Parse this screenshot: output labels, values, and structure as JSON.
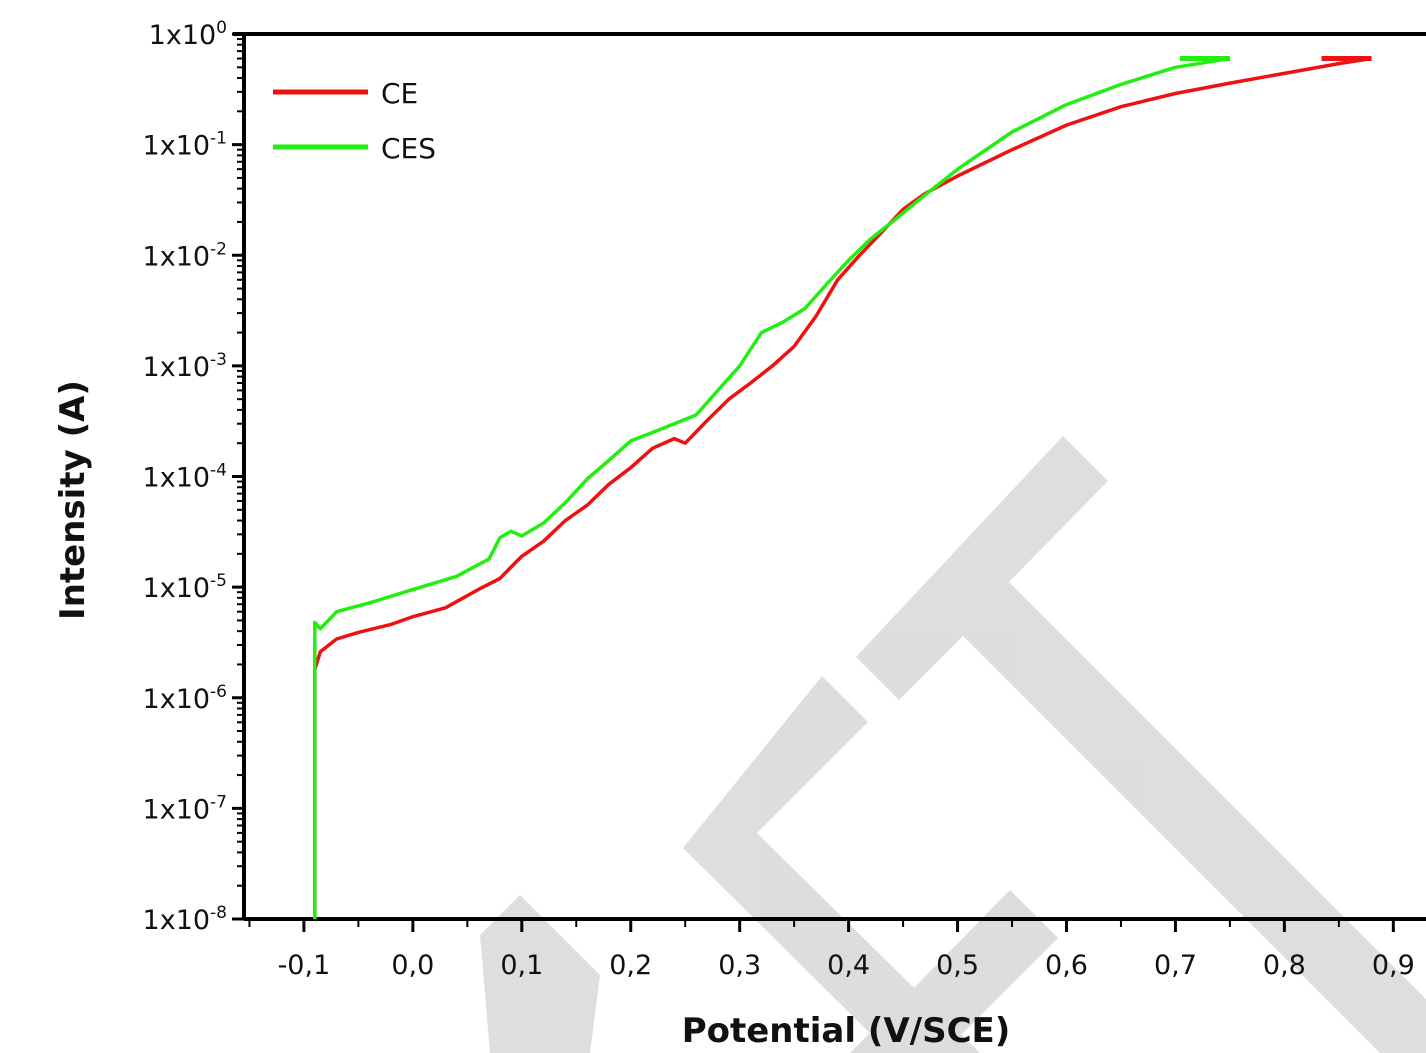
{
  "chart_data": {
    "type": "line",
    "xlabel": "Potential (V/SCE)",
    "ylabel": "Intensity (A)",
    "xlim": [
      -0.155,
      0.93
    ],
    "ylim_log10": [
      -8,
      0
    ],
    "y_scale": "log",
    "x_ticks": [
      "-0,1",
      "0,0",
      "0,1",
      "0,2",
      "0,3",
      "0,4",
      "0,5",
      "0,6",
      "0,7",
      "0,8",
      "0,9"
    ],
    "x_tick_values": [
      -0.1,
      0.0,
      0.1,
      0.2,
      0.3,
      0.4,
      0.5,
      0.6,
      0.7,
      0.8,
      0.9
    ],
    "y_ticks": [
      {
        "value": 1.0,
        "base": "1x10",
        "exp": "0"
      },
      {
        "value": 0.1,
        "base": "1x10",
        "exp": "-1"
      },
      {
        "value": 0.01,
        "base": "1x10",
        "exp": "-2"
      },
      {
        "value": 0.001,
        "base": "1x10",
        "exp": "-3"
      },
      {
        "value": 0.0001,
        "base": "1x10",
        "exp": "-4"
      },
      {
        "value": 1e-05,
        "base": "1x10",
        "exp": "-5"
      },
      {
        "value": 1e-06,
        "base": "1x10",
        "exp": "-6"
      },
      {
        "value": 1e-07,
        "base": "1x10",
        "exp": "-7"
      },
      {
        "value": 1e-08,
        "base": "1x10",
        "exp": "-8"
      }
    ],
    "grid": false,
    "legend_position": "top-left",
    "series": [
      {
        "name": "CE",
        "color": "#ee1111",
        "points": [
          [
            -0.09,
            1e-08
          ],
          [
            -0.09,
            1.8e-06
          ],
          [
            -0.085,
            2.6e-06
          ],
          [
            -0.07,
            3.4e-06
          ],
          [
            -0.05,
            3.9e-06
          ],
          [
            -0.02,
            4.6e-06
          ],
          [
            0.0,
            5.4e-06
          ],
          [
            0.03,
            6.5e-06
          ],
          [
            0.06,
            9.5e-06
          ],
          [
            0.08,
            1.2e-05
          ],
          [
            0.095,
            1.7e-05
          ],
          [
            0.1,
            1.9e-05
          ],
          [
            0.12,
            2.6e-05
          ],
          [
            0.14,
            4e-05
          ],
          [
            0.16,
            5.5e-05
          ],
          [
            0.18,
            8.5e-05
          ],
          [
            0.2,
            0.00012
          ],
          [
            0.22,
            0.00018
          ],
          [
            0.24,
            0.00022
          ],
          [
            0.25,
            0.0002
          ],
          [
            0.27,
            0.00032
          ],
          [
            0.29,
            0.0005
          ],
          [
            0.31,
            0.0007
          ],
          [
            0.33,
            0.001
          ],
          [
            0.35,
            0.0015
          ],
          [
            0.37,
            0.0028
          ],
          [
            0.39,
            0.006
          ],
          [
            0.41,
            0.01
          ],
          [
            0.43,
            0.016
          ],
          [
            0.45,
            0.026
          ],
          [
            0.47,
            0.036
          ],
          [
            0.5,
            0.052
          ],
          [
            0.55,
            0.09
          ],
          [
            0.6,
            0.15
          ],
          [
            0.65,
            0.22
          ],
          [
            0.7,
            0.29
          ],
          [
            0.75,
            0.36
          ],
          [
            0.8,
            0.44
          ],
          [
            0.85,
            0.54
          ],
          [
            0.88,
            0.6
          ]
        ]
      },
      {
        "name": "CES",
        "color": "#22ee11",
        "points": [
          [
            -0.09,
            1e-08
          ],
          [
            -0.09,
            4.8e-06
          ],
          [
            -0.085,
            4.2e-06
          ],
          [
            -0.07,
            6e-06
          ],
          [
            -0.04,
            7.2e-06
          ],
          [
            0.0,
            9.5e-06
          ],
          [
            0.04,
            1.25e-05
          ],
          [
            0.07,
            1.8e-05
          ],
          [
            0.08,
            2.8e-05
          ],
          [
            0.09,
            3.2e-05
          ],
          [
            0.1,
            2.9e-05
          ],
          [
            0.12,
            3.8e-05
          ],
          [
            0.14,
            5.8e-05
          ],
          [
            0.16,
            9.5e-05
          ],
          [
            0.18,
            0.00014
          ],
          [
            0.2,
            0.00021
          ],
          [
            0.22,
            0.00025
          ],
          [
            0.24,
            0.0003
          ],
          [
            0.26,
            0.00036
          ],
          [
            0.28,
            0.0006
          ],
          [
            0.3,
            0.001
          ],
          [
            0.32,
            0.002
          ],
          [
            0.34,
            0.0025
          ],
          [
            0.36,
            0.0033
          ],
          [
            0.38,
            0.0055
          ],
          [
            0.4,
            0.009
          ],
          [
            0.42,
            0.014
          ],
          [
            0.44,
            0.02
          ],
          [
            0.47,
            0.035
          ],
          [
            0.5,
            0.06
          ],
          [
            0.55,
            0.13
          ],
          [
            0.6,
            0.23
          ],
          [
            0.65,
            0.35
          ],
          [
            0.7,
            0.5
          ],
          [
            0.75,
            0.6
          ]
        ]
      }
    ],
    "legend": [
      {
        "label": "CE",
        "color": "#ee1111"
      },
      {
        "label": "CES",
        "color": "#22ee11"
      }
    ],
    "axis_color": "#000000"
  }
}
